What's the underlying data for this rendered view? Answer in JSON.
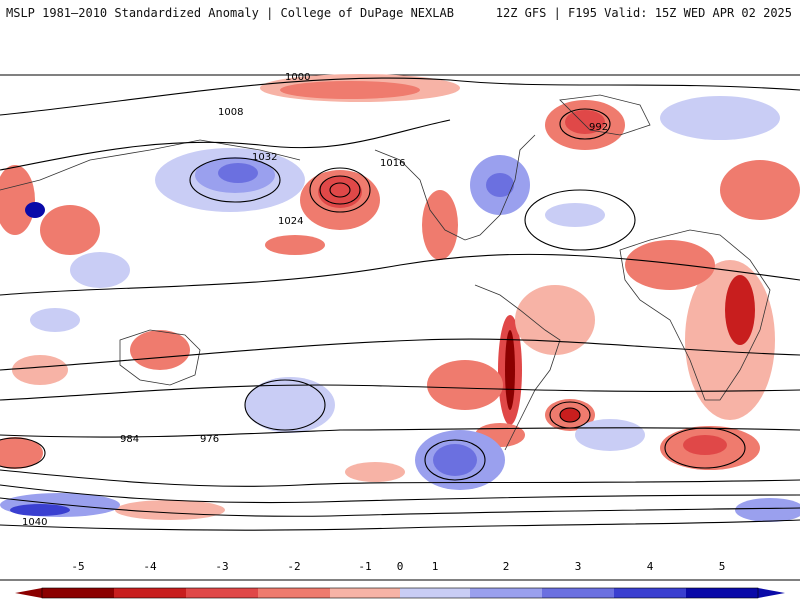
{
  "header": {
    "left_title": "MSLP 1981–2010 Standardized Anomaly | College of DuPage NEXLAB",
    "right_title": "12Z GFS | F195 Valid: 15Z WED APR 02 2025"
  },
  "contour_labels": [
    "1000",
    "1008",
    "1016",
    "1024",
    "1032",
    "992",
    "984",
    "976",
    "1040"
  ],
  "colorbar": {
    "ticks": [
      "-5",
      "-4",
      "-3",
      "-2",
      "-1",
      "0",
      "1",
      "2",
      "3",
      "4",
      "5"
    ],
    "colors": [
      "#8b0000",
      "#c81e1e",
      "#e04848",
      "#ef7b6e",
      "#f7b3a6",
      "#ffffff",
      "#c9cdf5",
      "#9aa0ee",
      "#6b70e0",
      "#3a3fd0",
      "#0a0aa8"
    ]
  }
}
